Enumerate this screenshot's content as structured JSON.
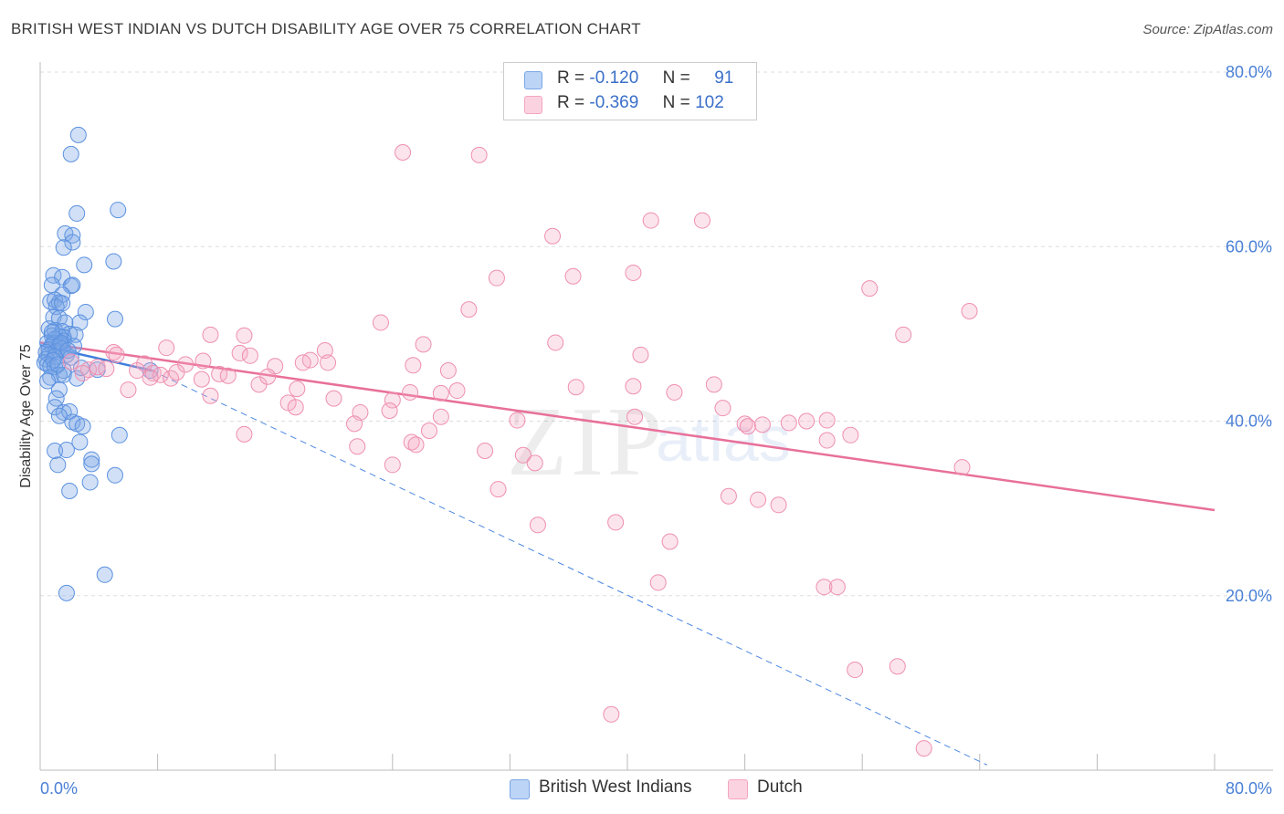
{
  "title": "BRITISH WEST INDIAN VS DUTCH DISABILITY AGE OVER 75 CORRELATION CHART",
  "source": "Source: ZipAtlas.com",
  "watermark": {
    "zip": "ZIP",
    "atlas": "atlas"
  },
  "legend": [
    {
      "r_label": "R =",
      "r_value": "-0.120",
      "n_label": "N =",
      "n_value": "91",
      "color": "#7ba7e6"
    },
    {
      "r_label": "R =",
      "r_value": "-0.369",
      "n_label": "N =",
      "n_value": "102",
      "color": "#f4a5bf"
    }
  ],
  "bottom_legend": [
    {
      "label": "British West Indians",
      "color": "#7ba7e6"
    },
    {
      "label": "Dutch",
      "color": "#f4a5bf"
    }
  ],
  "chart_data": {
    "type": "scatter",
    "title": "BRITISH WEST INDIAN VS DUTCH DISABILITY AGE OVER 75 CORRELATION CHART",
    "xlabel": "",
    "ylabel": "Disability Age Over 75",
    "xlim": [
      0,
      80
    ],
    "ylim": [
      0,
      80
    ],
    "x_tick_labels": [
      "0.0%",
      "80.0%"
    ],
    "y_tick_labels": [
      "20.0%",
      "40.0%",
      "60.0%",
      "80.0%"
    ],
    "y_ticks": [
      20,
      40,
      60,
      80
    ],
    "grid": true,
    "legend_position": "top-center",
    "series": [
      {
        "name": "British West Indians",
        "color": "#4a86e0",
        "trend": {
          "x": [
            0,
            7.6
          ],
          "y": [
            48.7,
            45.8
          ],
          "extended_x": [
            7.6,
            64.5
          ],
          "extended_y": [
            45.8,
            0.6
          ]
        },
        "points": [
          [
            2.6,
            72.8
          ],
          [
            2.1,
            70.6
          ],
          [
            5.3,
            64.2
          ],
          [
            2.5,
            63.8
          ],
          [
            1.7,
            61.5
          ],
          [
            2.2,
            61.3
          ],
          [
            2.2,
            60.5
          ],
          [
            1.6,
            59.9
          ],
          [
            5.0,
            58.3
          ],
          [
            3.0,
            57.9
          ],
          [
            0.9,
            56.7
          ],
          [
            1.5,
            56.5
          ],
          [
            0.8,
            55.6
          ],
          [
            2.1,
            55.5
          ],
          [
            2.2,
            55.6
          ],
          [
            1.5,
            54.5
          ],
          [
            0.7,
            53.7
          ],
          [
            1.0,
            53.9
          ],
          [
            1.3,
            53.6
          ],
          [
            1.1,
            53.1
          ],
          [
            1.5,
            53.5
          ],
          [
            3.1,
            52.5
          ],
          [
            0.9,
            51.9
          ],
          [
            1.3,
            51.8
          ],
          [
            5.1,
            51.7
          ],
          [
            2.7,
            51.3
          ],
          [
            1.7,
            51.3
          ],
          [
            0.6,
            50.6
          ],
          [
            1.0,
            50.4
          ],
          [
            1.5,
            50.3
          ],
          [
            2.0,
            50.0
          ],
          [
            1.6,
            49.6
          ],
          [
            2.4,
            49.9
          ],
          [
            0.8,
            49.8
          ],
          [
            1.3,
            49.7
          ],
          [
            1.6,
            49.2
          ],
          [
            1.0,
            49.4
          ],
          [
            0.5,
            49.0
          ],
          [
            0.9,
            48.9
          ],
          [
            1.4,
            48.8
          ],
          [
            1.3,
            48.5
          ],
          [
            0.8,
            48.7
          ],
          [
            2.3,
            48.6
          ],
          [
            0.6,
            48.2
          ],
          [
            1.1,
            48.0
          ],
          [
            1.5,
            48.3
          ],
          [
            0.4,
            47.9
          ],
          [
            0.6,
            47.6
          ],
          [
            1.8,
            47.6
          ],
          [
            0.4,
            47.1
          ],
          [
            1.0,
            47.4
          ],
          [
            0.3,
            46.7
          ],
          [
            0.5,
            46.5
          ],
          [
            0.7,
            46.3
          ],
          [
            1.0,
            46.2
          ],
          [
            1.6,
            45.8
          ],
          [
            3.9,
            45.9
          ],
          [
            7.5,
            45.8
          ],
          [
            1.3,
            45.3
          ],
          [
            1.6,
            45.3
          ],
          [
            0.7,
            45.0
          ],
          [
            0.5,
            44.6
          ],
          [
            2.5,
            44.9
          ],
          [
            1.3,
            43.6
          ],
          [
            1.1,
            42.6
          ],
          [
            1.0,
            41.6
          ],
          [
            1.6,
            41.0
          ],
          [
            2.0,
            41.1
          ],
          [
            1.3,
            40.6
          ],
          [
            2.2,
            39.9
          ],
          [
            2.5,
            39.7
          ],
          [
            2.9,
            39.4
          ],
          [
            5.4,
            38.4
          ],
          [
            2.7,
            37.6
          ],
          [
            1.0,
            36.6
          ],
          [
            1.8,
            36.7
          ],
          [
            3.5,
            35.6
          ],
          [
            3.5,
            35.1
          ],
          [
            1.2,
            35.0
          ],
          [
            5.1,
            33.8
          ],
          [
            3.4,
            33.0
          ],
          [
            2.0,
            32.0
          ],
          [
            4.4,
            22.4
          ],
          [
            1.8,
            20.3
          ],
          [
            0.9,
            47.0
          ],
          [
            1.2,
            46.5
          ],
          [
            2.1,
            47.3
          ],
          [
            1.4,
            49.0
          ],
          [
            0.8,
            50.2
          ],
          [
            1.9,
            48.1
          ],
          [
            2.8,
            46.1
          ]
        ]
      },
      {
        "name": "Dutch",
        "color": "#e8709a",
        "trend": {
          "x": [
            0,
            80
          ],
          "y": [
            49.0,
            29.8
          ]
        },
        "points": [
          [
            24.7,
            70.8
          ],
          [
            29.9,
            70.5
          ],
          [
            41.6,
            63.0
          ],
          [
            45.1,
            63.0
          ],
          [
            34.9,
            61.2
          ],
          [
            40.4,
            57.0
          ],
          [
            31.1,
            56.4
          ],
          [
            36.3,
            56.6
          ],
          [
            56.5,
            55.2
          ],
          [
            63.3,
            52.6
          ],
          [
            29.2,
            52.8
          ],
          [
            23.2,
            51.3
          ],
          [
            11.6,
            49.9
          ],
          [
            13.9,
            49.8
          ],
          [
            58.8,
            49.9
          ],
          [
            35.1,
            49.0
          ],
          [
            26.1,
            48.8
          ],
          [
            8.6,
            48.4
          ],
          [
            19.4,
            48.1
          ],
          [
            5.0,
            47.9
          ],
          [
            5.2,
            47.6
          ],
          [
            13.6,
            47.8
          ],
          [
            14.3,
            47.5
          ],
          [
            40.9,
            47.6
          ],
          [
            18.4,
            47.0
          ],
          [
            11.1,
            46.9
          ],
          [
            19.6,
            46.7
          ],
          [
            7.1,
            46.6
          ],
          [
            2.1,
            46.8
          ],
          [
            17.9,
            46.7
          ],
          [
            25.4,
            46.4
          ],
          [
            9.9,
            46.5
          ],
          [
            16.0,
            46.3
          ],
          [
            3.3,
            45.9
          ],
          [
            3.9,
            46.2
          ],
          [
            4.5,
            46.0
          ],
          [
            6.6,
            45.8
          ],
          [
            7.7,
            45.5
          ],
          [
            8.2,
            45.3
          ],
          [
            27.8,
            45.8
          ],
          [
            2.9,
            45.5
          ],
          [
            12.2,
            45.4
          ],
          [
            12.8,
            45.2
          ],
          [
            7.5,
            45.0
          ],
          [
            8.9,
            44.9
          ],
          [
            11.0,
            44.8
          ],
          [
            14.9,
            44.2
          ],
          [
            17.5,
            43.7
          ],
          [
            6.0,
            43.6
          ],
          [
            28.4,
            43.5
          ],
          [
            27.3,
            43.2
          ],
          [
            43.2,
            43.3
          ],
          [
            36.5,
            43.9
          ],
          [
            25.2,
            43.3
          ],
          [
            40.4,
            44.0
          ],
          [
            45.9,
            44.2
          ],
          [
            11.6,
            42.9
          ],
          [
            20.0,
            42.6
          ],
          [
            16.9,
            42.1
          ],
          [
            24.0,
            42.4
          ],
          [
            17.4,
            41.6
          ],
          [
            21.8,
            41.0
          ],
          [
            23.8,
            41.2
          ],
          [
            46.5,
            41.5
          ],
          [
            27.3,
            40.5
          ],
          [
            32.5,
            40.1
          ],
          [
            48.0,
            39.7
          ],
          [
            48.2,
            39.4
          ],
          [
            51.0,
            39.8
          ],
          [
            52.2,
            40.0
          ],
          [
            40.5,
            40.5
          ],
          [
            21.4,
            39.7
          ],
          [
            26.5,
            38.9
          ],
          [
            13.9,
            38.5
          ],
          [
            55.2,
            38.4
          ],
          [
            53.6,
            37.8
          ],
          [
            25.3,
            37.6
          ],
          [
            25.6,
            37.3
          ],
          [
            21.6,
            37.1
          ],
          [
            30.3,
            36.6
          ],
          [
            32.9,
            36.1
          ],
          [
            24.0,
            35.0
          ],
          [
            33.7,
            35.2
          ],
          [
            62.8,
            34.7
          ],
          [
            31.2,
            32.2
          ],
          [
            46.9,
            31.4
          ],
          [
            48.9,
            31.0
          ],
          [
            50.3,
            30.4
          ],
          [
            33.9,
            28.1
          ],
          [
            39.2,
            28.4
          ],
          [
            42.9,
            26.2
          ],
          [
            42.1,
            21.5
          ],
          [
            53.4,
            21.0
          ],
          [
            54.3,
            21.0
          ],
          [
            53.6,
            40.1
          ],
          [
            49.2,
            39.6
          ],
          [
            55.5,
            11.5
          ],
          [
            58.4,
            11.9
          ],
          [
            38.9,
            6.4
          ],
          [
            60.2,
            2.5
          ],
          [
            9.3,
            45.6
          ],
          [
            15.5,
            45.1
          ]
        ]
      }
    ]
  }
}
